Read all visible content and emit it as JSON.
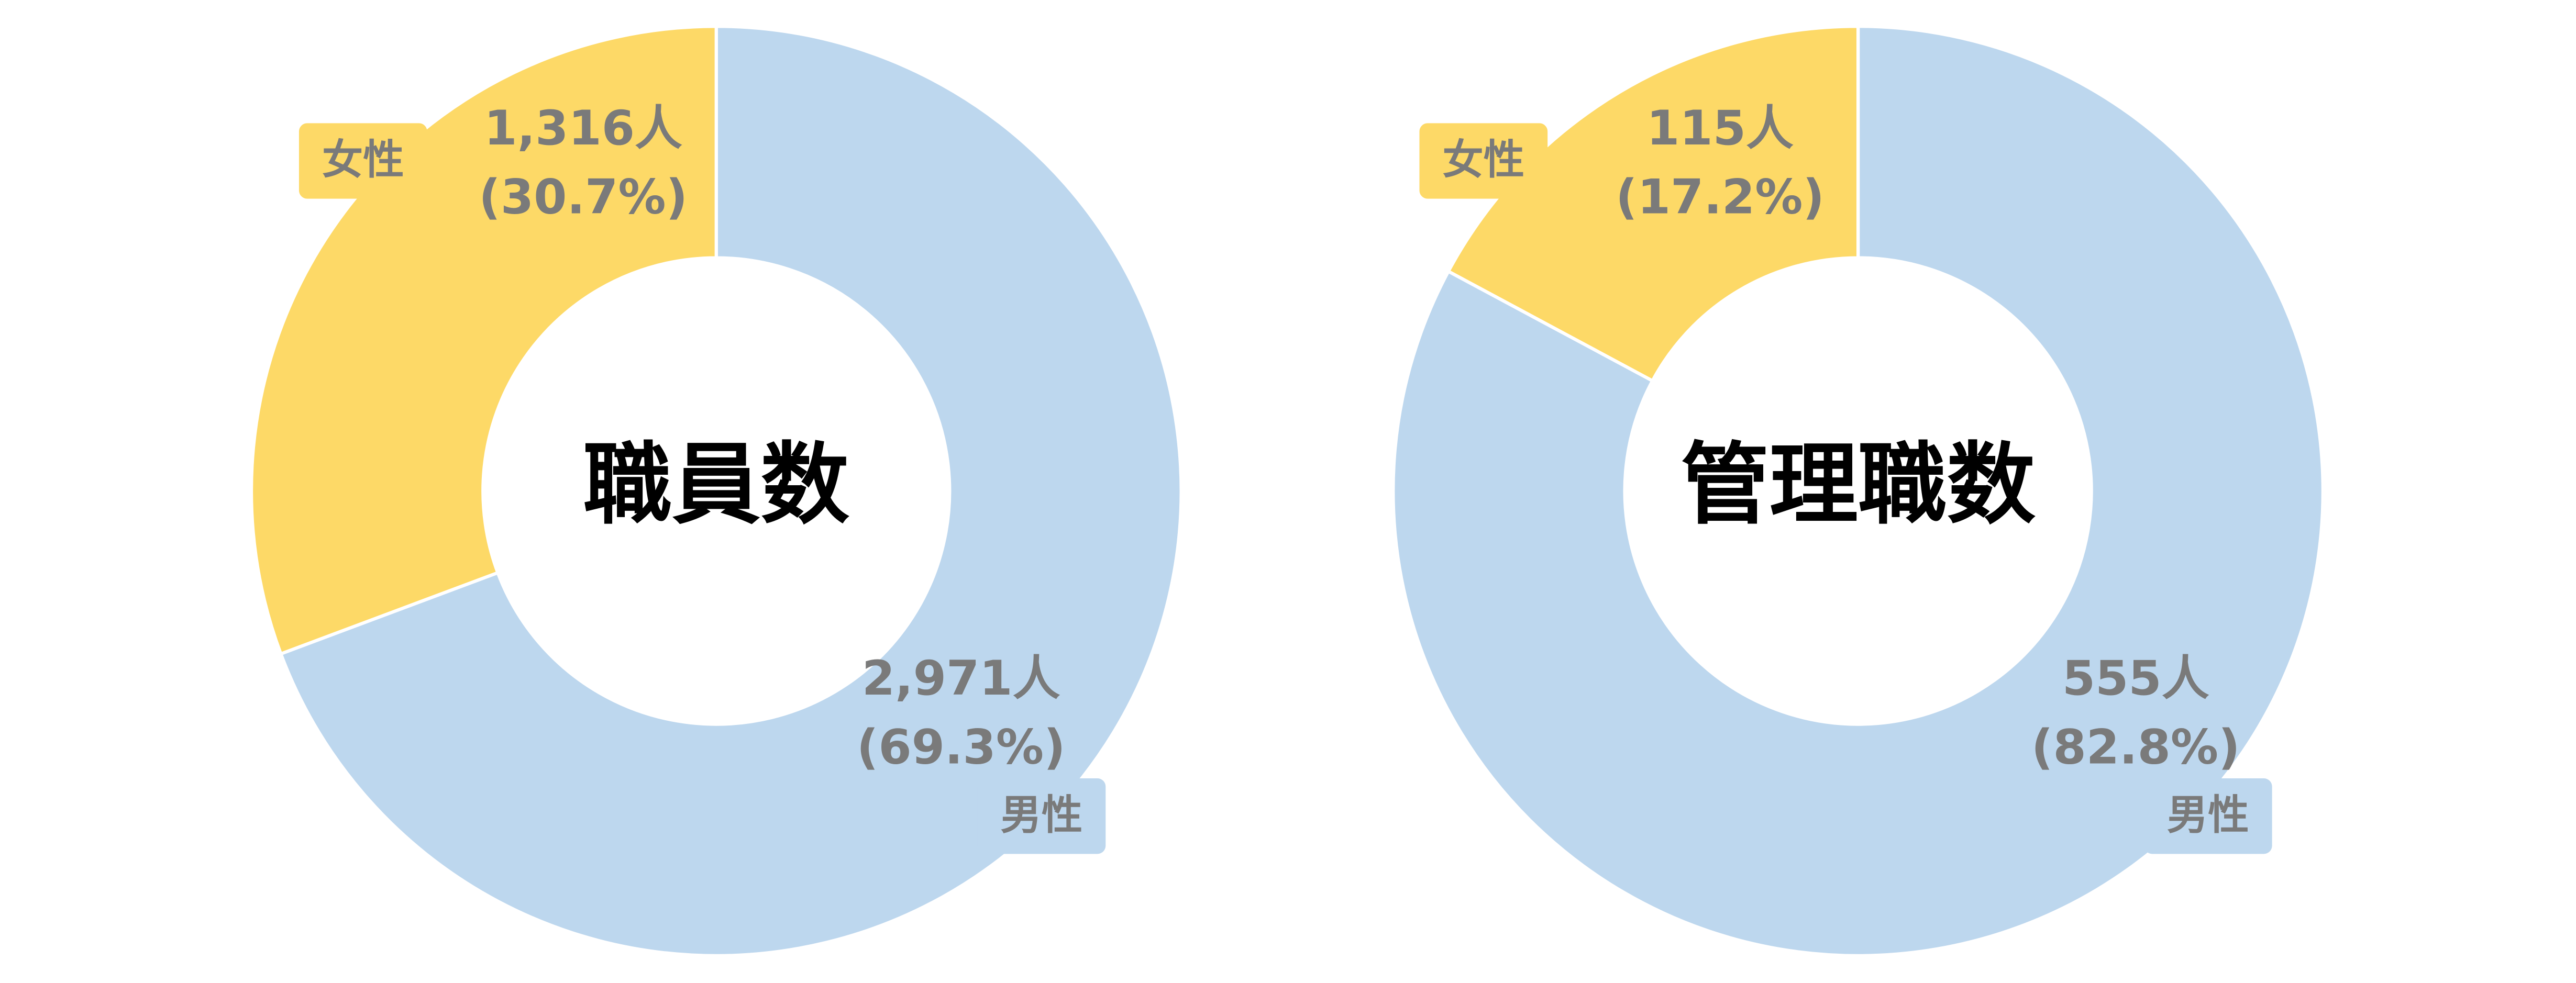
{
  "chart_data": [
    {
      "type": "donut",
      "title": "職員数",
      "categories": [
        "男性",
        "女性"
      ],
      "values": [
        2971,
        1316
      ],
      "value_labels": [
        "2,971人",
        "1,316人"
      ],
      "percents": [
        69.3,
        30.7
      ],
      "percent_labels": [
        "(69.3%)",
        "(30.7%)"
      ],
      "colors": [
        "#bdd7ee",
        "#fdd967"
      ]
    },
    {
      "type": "donut",
      "title": "管理職数",
      "categories": [
        "男性",
        "女性"
      ],
      "values": [
        555,
        115
      ],
      "value_labels": [
        "555人",
        "115人"
      ],
      "percents": [
        82.8,
        17.2
      ],
      "percent_labels": [
        "(82.8%)",
        "(17.2%)"
      ],
      "colors": [
        "#bdd7ee",
        "#fdd967"
      ]
    }
  ]
}
